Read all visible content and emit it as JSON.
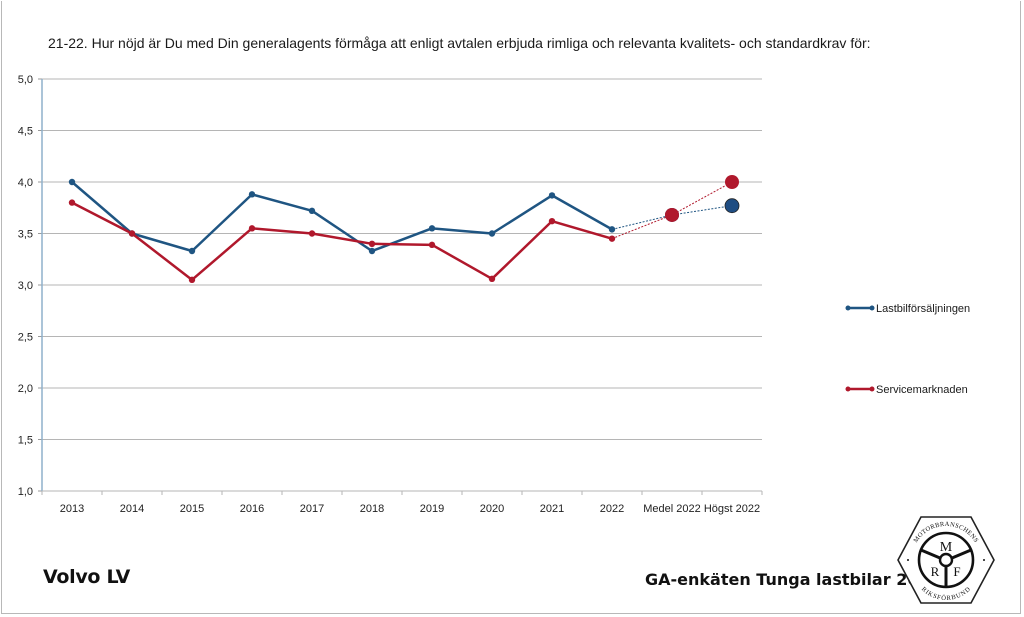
{
  "question": "21-22. Hur nöjd är Du med Din generalagents förmåga att enligt avtalen erbjuda rimliga och relevanta kvalitets- och standardkrav för:",
  "brand": "Volvo LV",
  "footer_title": "GA-enkäten Tunga lastbilar 2022",
  "logo": {
    "top_text": "MOTORBRANSCHENS",
    "bottom_text": "RIKSFÖRBUND",
    "letters": [
      "M",
      "R",
      "F"
    ]
  },
  "chart_data": {
    "type": "line",
    "title": "21-22. Hur nöjd är Du med Din generalagents förmåga att enligt avtalen erbjuda rimliga och relevanta kvalitets- och standardkrav för:",
    "xlabel": "",
    "ylabel": "",
    "categories": [
      "2013",
      "2014",
      "2015",
      "2016",
      "2017",
      "2018",
      "2019",
      "2020",
      "2021",
      "2022",
      "Medel 2022",
      "Högst 2022"
    ],
    "ylim": [
      1.0,
      5.0
    ],
    "yticks": [
      "1,0",
      "1,5",
      "2,0",
      "2,5",
      "3,0",
      "3,5",
      "4,0",
      "4,5",
      "5,0"
    ],
    "ytick_values": [
      1.0,
      1.5,
      2.0,
      2.5,
      3.0,
      3.5,
      4.0,
      4.5,
      5.0
    ],
    "grid": true,
    "legend_position": "right",
    "series": [
      {
        "name": "Lastbilförsäljningen",
        "color": "#1f5582",
        "values": [
          4.0,
          3.5,
          3.33,
          3.88,
          3.72,
          3.33,
          3.55,
          3.5,
          3.87,
          3.54
        ],
        "medel_2022": 3.68,
        "hogst_2022": 3.77
      },
      {
        "name": "Servicemarknaden",
        "color": "#b0182c",
        "values": [
          3.8,
          3.5,
          3.05,
          3.55,
          3.5,
          3.4,
          3.39,
          3.06,
          3.62,
          3.45
        ],
        "medel_2022": 3.68,
        "hogst_2022": 4.0
      }
    ]
  }
}
